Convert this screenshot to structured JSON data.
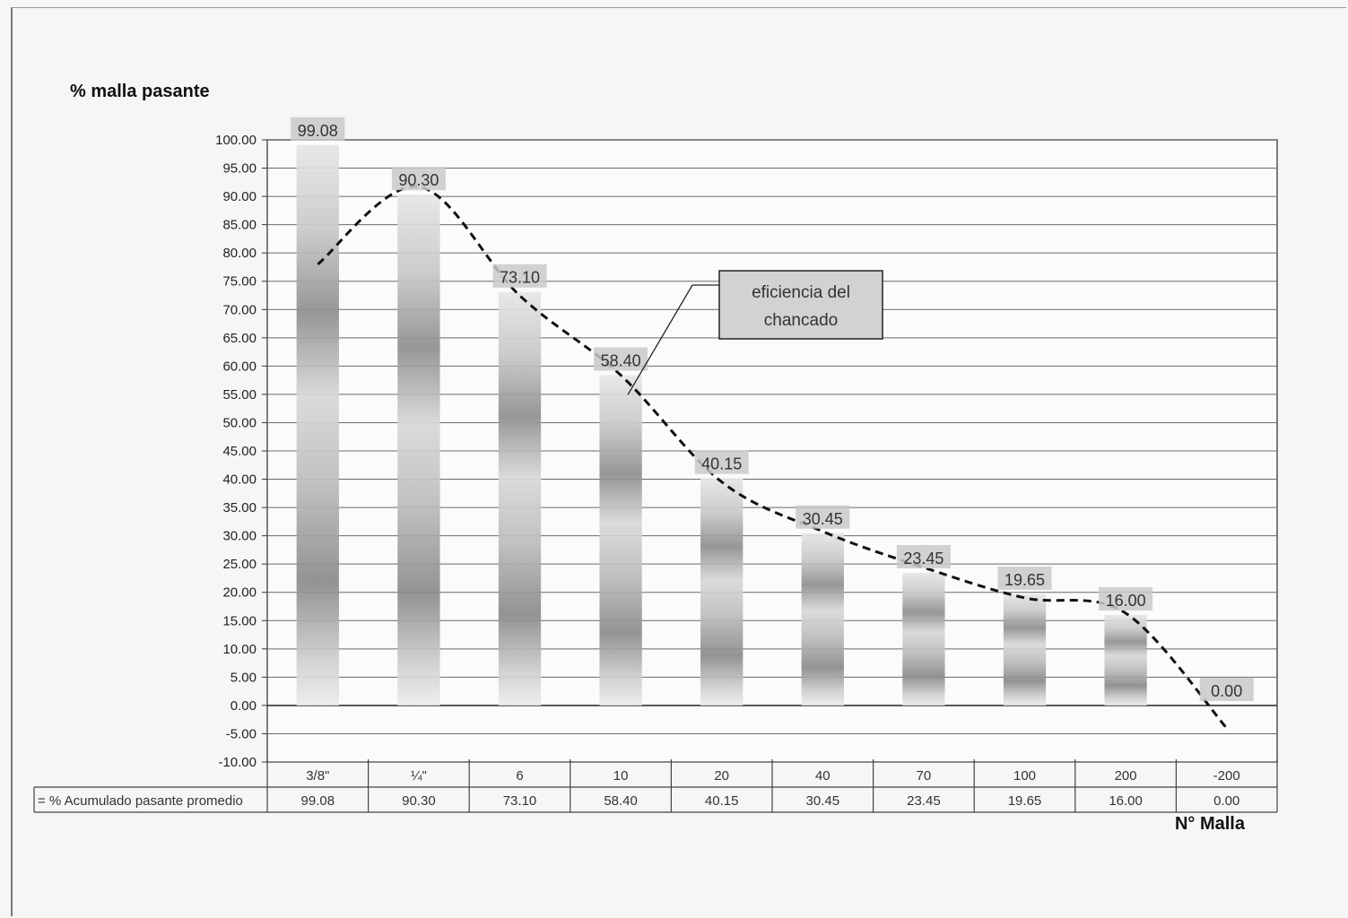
{
  "chart_data": {
    "type": "bar",
    "ylabel": "% malla pasante",
    "xlabel": "N° Malla",
    "categories": [
      "3/8\"",
      "¼\"",
      "6",
      "10",
      "20",
      "40",
      "70",
      "100",
      "200",
      "-200"
    ],
    "series": [
      {
        "name": "% Acumulado pasante promedio",
        "values": [
          99.08,
          90.3,
          73.1,
          58.4,
          40.15,
          30.45,
          23.45,
          19.65,
          16.0,
          0.0
        ],
        "labels": [
          "99.08",
          "90.30",
          "73.10",
          "58.40",
          "40.15",
          "30.45",
          "23.45",
          "19.65",
          "16.00",
          "0.00"
        ]
      }
    ],
    "trendline": {
      "style": "dashed",
      "type": "polynomial"
    },
    "annotation": {
      "text_lines": [
        "eficiencia  del",
        "chancado"
      ]
    },
    "ylim": [
      -10,
      100
    ],
    "ystep": 5,
    "ytick_labels": [
      "-10.00",
      "-5.00",
      "0.00",
      "5.00",
      "10.00",
      "15.00",
      "20.00",
      "25.00",
      "30.00",
      "35.00",
      "40.00",
      "45.00",
      "50.00",
      "55.00",
      "60.00",
      "65.00",
      "70.00",
      "75.00",
      "80.00",
      "85.00",
      "90.00",
      "95.00",
      "100.00"
    ],
    "grid": true,
    "legend": "data table below x-axis",
    "table_legend_key": "=",
    "table_values": [
      "99.08",
      "90.30",
      "73.10",
      "58.40",
      "40.15",
      "30.45",
      "23.45",
      "19.65",
      "16.00",
      "0.00"
    ]
  }
}
